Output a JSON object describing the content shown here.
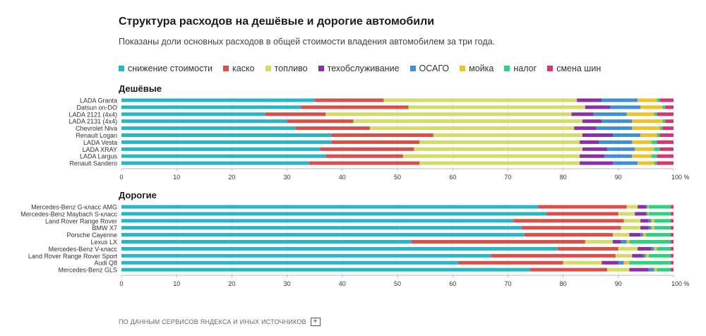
{
  "title": "Структура расходов на дешёвые и дорогие автомобили",
  "subtitle": "Показаны доли основных расходов в общей стоимости владения автомобилем за три года.",
  "footer": {
    "source": "ПО ДАННЫМ СЕРВИСОВ ЯНДЕКСА И ИНЫХ ИСТОЧНИКОВ",
    "expand_label": "+"
  },
  "legend": [
    {
      "name": "снижение стоимости",
      "color": "#26b6c8"
    },
    {
      "name": "каско",
      "color": "#d9504a"
    },
    {
      "name": "топливо",
      "color": "#d2dc66"
    },
    {
      "name": "техобслуживание",
      "color": "#8b2fa6"
    },
    {
      "name": "ОСАГО",
      "color": "#3d8fd6"
    },
    {
      "name": "мойка",
      "color": "#efc227"
    },
    {
      "name": "налог",
      "color": "#2ed17e"
    },
    {
      "name": "смена шин",
      "color": "#d8366f"
    }
  ],
  "chart_data": [
    {
      "type": "bar",
      "orientation": "horizontal",
      "stacked": true,
      "title": "Дешёвые",
      "xlim": [
        0,
        100
      ],
      "x_ticks": [
        "0",
        "10",
        "20",
        "30",
        "40",
        "50",
        "60",
        "70",
        "80",
        "90",
        "100 %"
      ],
      "categories": [
        "LADA Granta",
        "Datsun on-DO",
        "LADA 2121 (4x4)",
        "LADA 2131 (4x4)",
        "Chevrolet Niva",
        "Renault Logan",
        "LADA Vesta",
        "LADA XRAY",
        "LADA Largus",
        "Renault Sandero"
      ],
      "series": [
        {
          "name": "снижение стоимости",
          "values": [
            35,
            32.5,
            26,
            30,
            31.5,
            38,
            38,
            36,
            37,
            34
          ]
        },
        {
          "name": "каско",
          "values": [
            12.5,
            19.5,
            11,
            12,
            13.5,
            18.5,
            16,
            17,
            14,
            20
          ]
        },
        {
          "name": "топливо",
          "values": [
            35,
            32,
            44.5,
            41.5,
            37,
            27,
            29,
            30.5,
            32,
            29
          ]
        },
        {
          "name": "техобслуживание",
          "values": [
            4.5,
            4.5,
            4,
            3.5,
            4,
            5.5,
            3.5,
            4.5,
            4.5,
            6
          ]
        },
        {
          "name": "ОСАГО",
          "values": [
            6.5,
            5.5,
            6,
            5.5,
            6.5,
            5,
            6,
            5,
            5,
            4.5
          ]
        },
        {
          "name": "мойка",
          "values": [
            3.5,
            4,
            5,
            5.5,
            5,
            3,
            3.5,
            3.5,
            3.5,
            3
          ]
        },
        {
          "name": "налог",
          "values": [
            0.5,
            0.5,
            0.5,
            0.5,
            0.5,
            0.5,
            1,
            1,
            1,
            0.5
          ]
        },
        {
          "name": "смена шин",
          "values": [
            2.5,
            1.5,
            3,
            1.5,
            2,
            2.5,
            3,
            2.5,
            3,
            3
          ]
        }
      ]
    },
    {
      "type": "bar",
      "orientation": "horizontal",
      "stacked": true,
      "title": "Дорогие",
      "xlim": [
        0,
        100
      ],
      "x_ticks": [
        "0",
        "10",
        "20",
        "30",
        "40",
        "50",
        "60",
        "70",
        "80",
        "90",
        "100 %"
      ],
      "categories": [
        "Mercedes-Benz G-класс AMG",
        "Mercedes-Benz Maybach S-класс",
        "Land Rover Range Rover",
        "BMW X7",
        "Porsche Cayenne",
        "Lexus LX",
        "Mercedes-Benz V-класс",
        "Land Rover Range Rover Sport",
        "Audi Q8",
        "Mercedes-Benz GLS"
      ],
      "series": [
        {
          "name": "снижение стоимости",
          "values": [
            75.5,
            77,
            71,
            72.5,
            73,
            52.5,
            79,
            67,
            61,
            74
          ]
        },
        {
          "name": "каско",
          "values": [
            16,
            13,
            20,
            18,
            16,
            31.5,
            11,
            22.5,
            19,
            14
          ]
        },
        {
          "name": "топливо",
          "values": [
            2,
            3,
            3,
            3.5,
            3,
            5,
            3.5,
            3,
            7,
            4
          ]
        },
        {
          "name": "техобслуживание",
          "values": [
            1.5,
            2,
            1.5,
            1.5,
            2,
            1.5,
            2.5,
            2,
            3,
            3.5
          ]
        },
        {
          "name": "ОСАГО",
          "values": [
            0.3,
            0.3,
            0.5,
            0.5,
            0.5,
            1,
            0.5,
            0.5,
            1,
            1
          ]
        },
        {
          "name": "мойка",
          "values": [
            0.2,
            0.2,
            0.5,
            0.5,
            0.5,
            0.5,
            0.5,
            0.5,
            1,
            0.5
          ]
        },
        {
          "name": "налог",
          "values": [
            4,
            4,
            3,
            3,
            4.5,
            7.5,
            2.5,
            4,
            7.5,
            2.5
          ]
        },
        {
          "name": "смена шин",
          "values": [
            0.5,
            0.5,
            0.5,
            0.5,
            0.5,
            0.5,
            0.5,
            0.5,
            0.5,
            0.5
          ]
        }
      ]
    }
  ]
}
